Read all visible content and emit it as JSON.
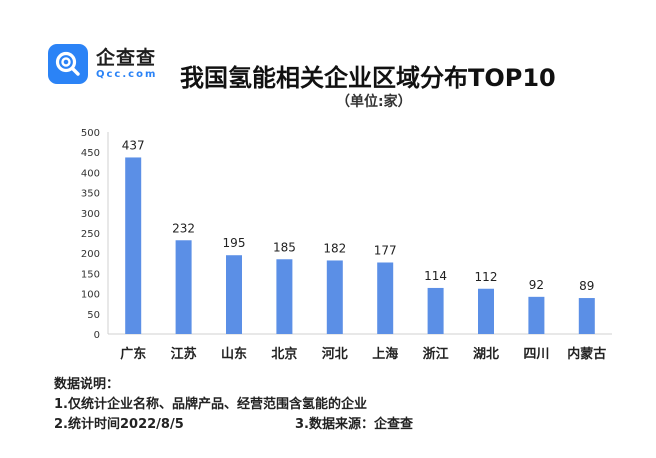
{
  "brand": {
    "name": "企查查",
    "domain": "Qcc.com",
    "accent": "#2b83f6"
  },
  "chart_data": {
    "type": "bar",
    "title": "我国氢能相关企业区域分布TOP10",
    "subtitle": "（单位:家）",
    "categories": [
      "广东",
      "江苏",
      "山东",
      "北京",
      "河北",
      "上海",
      "浙江",
      "湖北",
      "四川",
      "内蒙古"
    ],
    "values": [
      437,
      232,
      195,
      185,
      182,
      177,
      114,
      112,
      92,
      89
    ],
    "yticks": [
      "0",
      "50",
      "100",
      "150",
      "200",
      "250",
      "300",
      "350",
      "400",
      "450",
      "500"
    ],
    "ylim": [
      0,
      500
    ],
    "grid": false,
    "bar_color": "#5b8fe6"
  },
  "notes": {
    "heading": "数据说明：",
    "line1": "1.仅统计企业名称、品牌产品、经营范围含氢能的企业",
    "line2": "2.统计时间2022/8/5",
    "line3": "3.数据来源：企查查"
  }
}
